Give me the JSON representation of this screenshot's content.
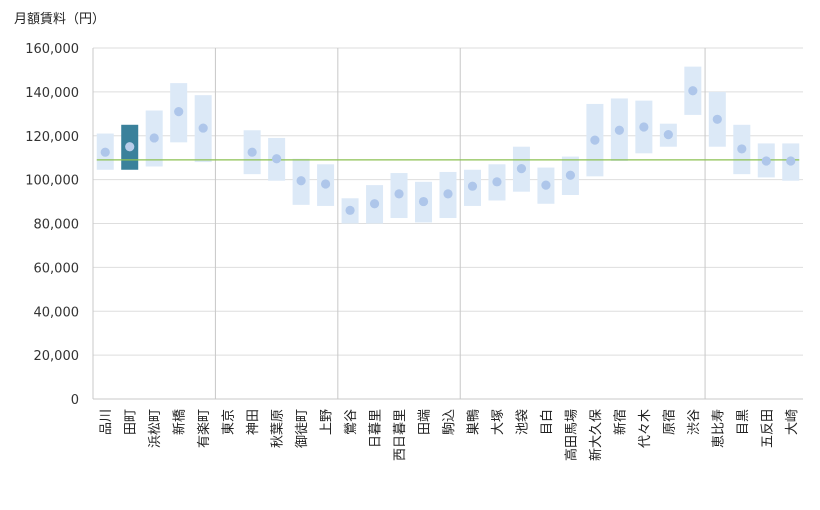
{
  "chart_data": {
    "type": "range-dot",
    "unit_label": "月額賃料（円）",
    "ylim": [
      0,
      160000
    ],
    "ytick_step": 20000,
    "ytick_labels": [
      "0",
      "20,000",
      "40,000",
      "60,000",
      "80,000",
      "100,000",
      "120,000",
      "140,000",
      "160,000"
    ],
    "reference_line": 109000,
    "highlight_index": 1,
    "section_dividers_after": [
      4,
      9,
      14,
      24
    ],
    "colors": {
      "range": "#dce9f7",
      "highlight": "#3a819b",
      "dot": "#aec6ea",
      "highlight_dot": "#b9cdea",
      "reference": "#8cc152",
      "grid": "#dedede",
      "axis": "#c8c8c8"
    },
    "categories": [
      "品川",
      "田町",
      "浜松町",
      "新橋",
      "有楽町",
      "東京",
      "神田",
      "秋葉原",
      "御徒町",
      "上野",
      "鶯谷",
      "日暮里",
      "西日暮里",
      "田端",
      "駒込",
      "巣鴨",
      "大塚",
      "池袋",
      "目白",
      "高田馬場",
      "新大久保",
      "新宿",
      "代々木",
      "原宿",
      "渋谷",
      "恵比寿",
      "目黒",
      "五反田",
      "大崎"
    ],
    "low": [
      104500,
      104500,
      106000,
      117000,
      108000,
      null,
      102500,
      99500,
      88500,
      88000,
      80000,
      80000,
      82500,
      80500,
      82500,
      88000,
      90500,
      94500,
      89000,
      93000,
      101500,
      108500,
      112000,
      115000,
      129500,
      115000,
      102500,
      101000,
      99500
    ],
    "high": [
      121000,
      125000,
      131500,
      144000,
      138500,
      null,
      122500,
      119000,
      109500,
      107000,
      91500,
      97500,
      103000,
      99000,
      103500,
      104500,
      107000,
      115000,
      105500,
      110500,
      134500,
      137000,
      136000,
      125500,
      151500,
      140000,
      125000,
      116500,
      116500
    ],
    "median": [
      112500,
      115000,
      119000,
      131000,
      123500,
      null,
      112500,
      109500,
      99500,
      98000,
      86000,
      89000,
      93500,
      90000,
      93500,
      97000,
      99000,
      105000,
      97500,
      102000,
      118000,
      122500,
      124000,
      120500,
      140500,
      127500,
      114000,
      108500,
      108500
    ]
  }
}
